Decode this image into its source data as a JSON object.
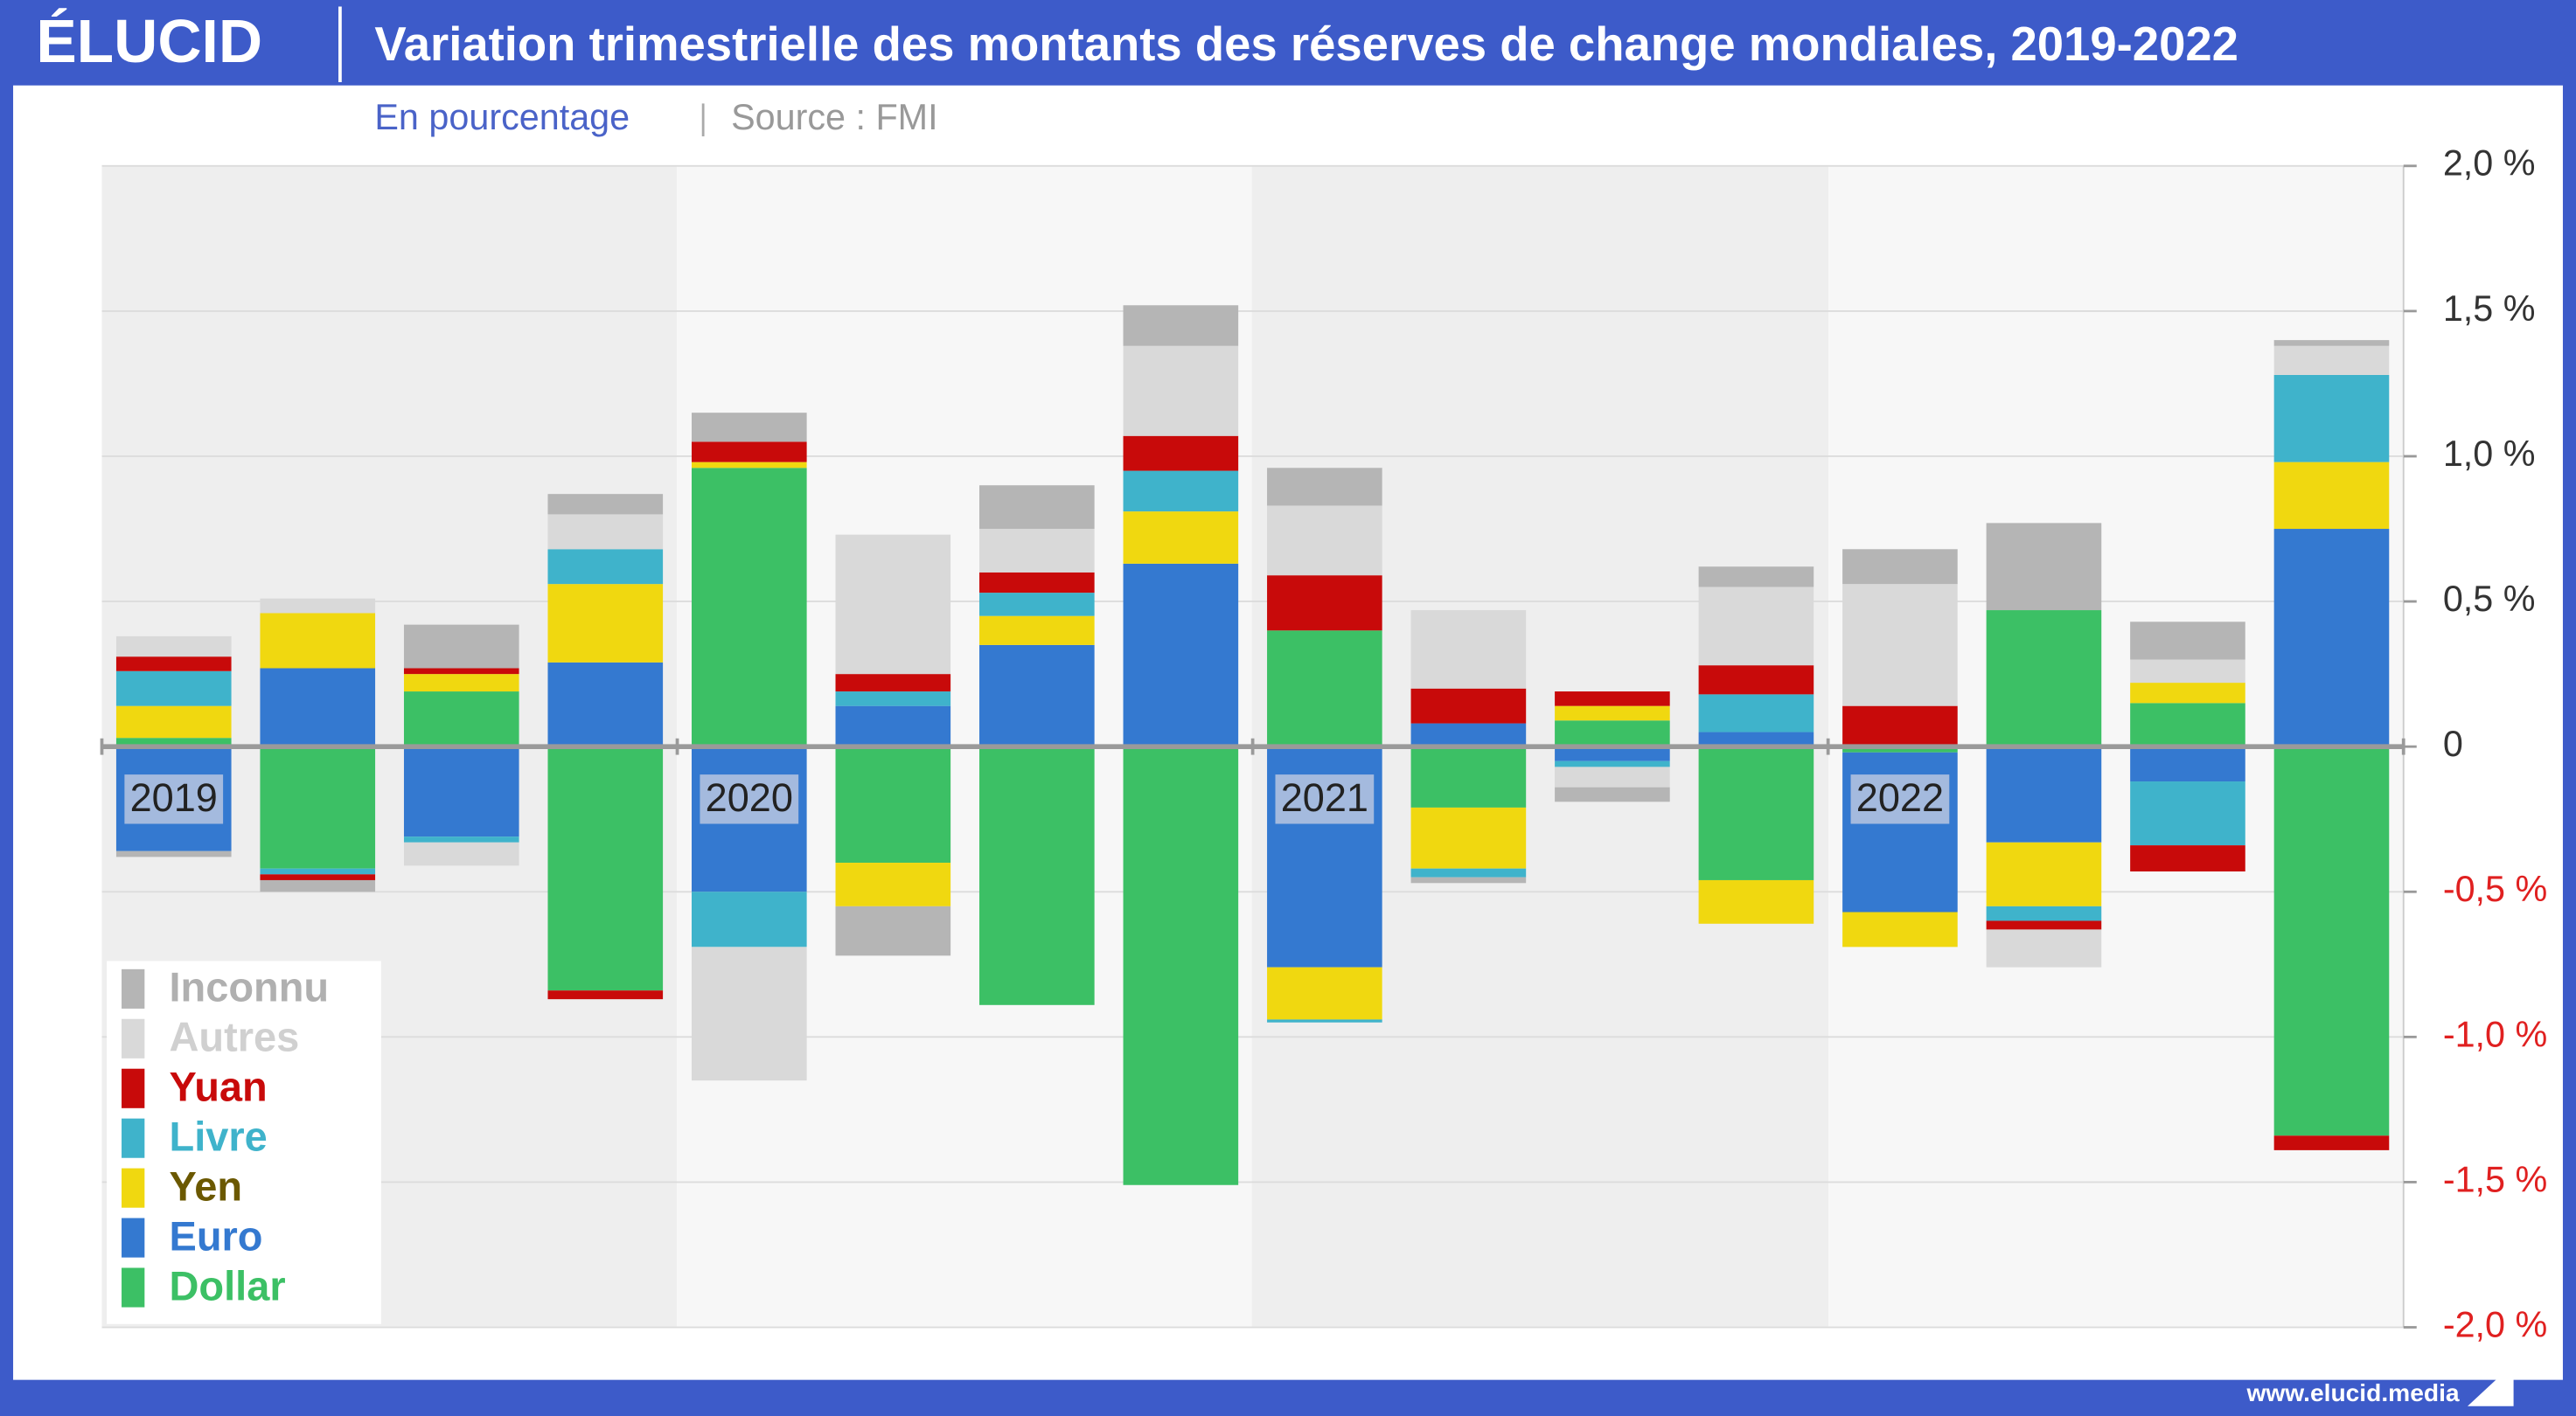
{
  "brand": "ÉLUCID",
  "footer": "www.elucid.media",
  "chart_data": {
    "type": "stacked_bar",
    "title": "Variation trimestrielle des montants des réserves de change mondiales, 2019-2022",
    "subtitle": "En pourcentage",
    "source": "Source : FMI",
    "categories": [
      "2019",
      null,
      null,
      null,
      "2020",
      null,
      null,
      null,
      "2021",
      null,
      null,
      null,
      "2022",
      null,
      null,
      null
    ],
    "series": [
      {
        "name": "Dollar",
        "color": "#3cc065",
        "text_color": "#3cc065",
        "values": [
          0.03,
          -0.42,
          0.19,
          -0.84,
          0.96,
          -0.4,
          -0.89,
          -1.51,
          0.4,
          -0.21,
          0.09,
          -0.46,
          -0.02,
          0.47,
          0.15,
          -1.34
        ]
      },
      {
        "name": "Euro",
        "color": "#3479d0",
        "text_color": "#3479d0",
        "values": [
          -0.36,
          0.27,
          -0.31,
          0.29,
          -0.5,
          0.14,
          0.35,
          0.63,
          -0.76,
          0.08,
          -0.05,
          0.05,
          -0.55,
          -0.33,
          -0.12,
          0.75
        ]
      },
      {
        "name": "Yen",
        "color": "#f0d810",
        "text_color": "#6b5800",
        "values": [
          0.11,
          0.19,
          0.06,
          0.27,
          0.02,
          -0.15,
          0.1,
          0.18,
          -0.18,
          -0.21,
          0.05,
          -0.15,
          -0.12,
          -0.22,
          0.07,
          0.23
        ]
      },
      {
        "name": "Livre",
        "color": "#3fb3cb",
        "text_color": "#3fb3cb",
        "values": [
          0.12,
          -0.02,
          -0.02,
          0.12,
          -0.19,
          0.05,
          0.08,
          0.14,
          -0.01,
          -0.03,
          -0.02,
          0.13,
          0,
          -0.05,
          -0.22,
          0.3
        ]
      },
      {
        "name": "Yuan",
        "color": "#c80a0a",
        "text_color": "#c80a0a",
        "values": [
          0.05,
          -0.02,
          0.02,
          -0.03,
          0.07,
          0.06,
          0.07,
          0.12,
          0.19,
          0.12,
          0.05,
          0.1,
          0.14,
          -0.03,
          -0.09,
          -0.05
        ]
      },
      {
        "name": "Autres",
        "color": "#d9d9d9",
        "text_color": "#d0d0d0",
        "values": [
          0.07,
          0.05,
          -0.08,
          0.12,
          -0.46,
          0.48,
          0.15,
          0.31,
          0.24,
          0.27,
          -0.07,
          0.27,
          0.42,
          -0.13,
          0.08,
          0.1
        ]
      },
      {
        "name": "Inconnu",
        "color": "#b5b5b5",
        "text_color": "#b0b0b0",
        "values": [
          -0.02,
          -0.04,
          0.15,
          0.07,
          0.1,
          -0.17,
          0.15,
          0.14,
          0.13,
          -0.02,
          -0.05,
          0.07,
          0.12,
          0.3,
          0.13,
          0.02
        ]
      }
    ],
    "ylim": [
      -2,
      2
    ],
    "yticks": [
      {
        "value": -2,
        "label": "-2,0 %"
      },
      {
        "value": -1.5,
        "label": "-1,5 %"
      },
      {
        "value": -1,
        "label": "-1,0 %"
      },
      {
        "value": -0.5,
        "label": "-0,5 %"
      },
      0,
      {
        "value": 0.5,
        "label": "0,5 %"
      },
      {
        "value": 1,
        "label": "1,0 %"
      },
      {
        "value": 1.5,
        "label": "1,5 %"
      },
      {
        "value": 2,
        "label": "2,0 %"
      }
    ],
    "negative_tick_color": "#e02020",
    "grid": true,
    "legend": "lower left"
  }
}
